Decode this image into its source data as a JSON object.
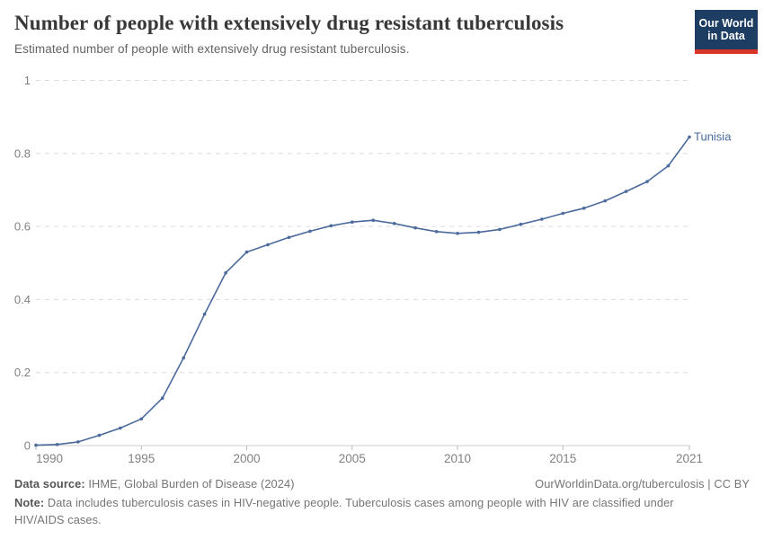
{
  "header": {
    "title": "Number of people with extensively drug resistant tuberculosis",
    "subtitle": "Estimated number of people with extensively drug resistant tuberculosis.",
    "logo": {
      "line1": "Our World",
      "line2": "in Data"
    }
  },
  "chart_data": {
    "type": "line",
    "title": "Number of people with extensively drug resistant tuberculosis",
    "x": [
      1990,
      1991,
      1992,
      1993,
      1994,
      1995,
      1996,
      1997,
      1998,
      1999,
      2000,
      2001,
      2002,
      2003,
      2004,
      2005,
      2006,
      2007,
      2008,
      2009,
      2010,
      2011,
      2012,
      2013,
      2014,
      2015,
      2016,
      2017,
      2018,
      2019,
      2020,
      2021
    ],
    "series": [
      {
        "name": "Tunisia",
        "color": "#4C6A9C",
        "values": [
          0.001,
          0.003,
          0.01,
          0.028,
          0.048,
          0.073,
          0.13,
          0.24,
          0.36,
          0.473,
          0.53,
          0.55,
          0.57,
          0.587,
          0.602,
          0.612,
          0.617,
          0.608,
          0.596,
          0.586,
          0.581,
          0.584,
          0.592,
          0.606,
          0.62,
          0.636,
          0.65,
          0.67,
          0.696,
          0.723,
          0.766,
          0.845
        ]
      }
    ],
    "xlabel": "",
    "ylabel": "",
    "xlim": [
      1990,
      2021
    ],
    "ylim": [
      0,
      1
    ],
    "x_ticks": [
      1990,
      1995,
      2000,
      2005,
      2010,
      2015,
      2021
    ],
    "y_ticks": [
      0,
      0.2,
      0.4,
      0.6,
      0.8,
      1
    ],
    "grid": "horizontal-dashed",
    "legend_position": "end-of-line-label"
  },
  "footer": {
    "datasource_label": "Data source:",
    "datasource_value": " IHME, Global Burden of Disease (2024)",
    "rights": "OurWorldinData.org/tuberculosis | CC BY",
    "note_label": "Note:",
    "note_value": " Data includes tuberculosis cases in HIV-negative people. Tuberculosis cases among people with HIV are classified under HIV/AIDS cases."
  },
  "colors": {
    "accent_line": "#4C6A9C",
    "grid": "#dcdcdc",
    "axis": "#cccccc",
    "tick_text": "#818181",
    "logo_bg": "#1d3d63",
    "logo_red": "#d8352a"
  }
}
